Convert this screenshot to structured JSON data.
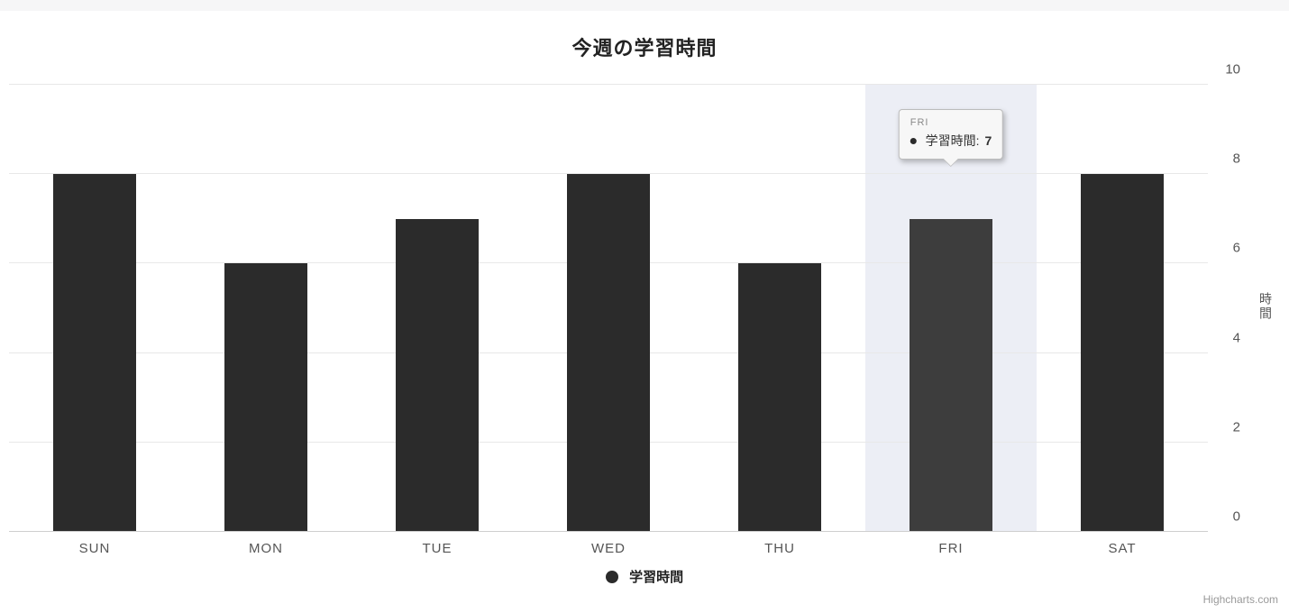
{
  "chart": {
    "type": "bar",
    "title": "今週の学習時間",
    "title_fontsize": 22,
    "background_color": "#ffffff",
    "top_strip_color": "#f6f6f7",
    "grid_color": "#e8e8e8",
    "baseline_color": "#cfcfcf",
    "categories": [
      "SUN",
      "MON",
      "TUE",
      "WED",
      "THU",
      "FRI",
      "SAT"
    ],
    "values": [
      8,
      6,
      7,
      8,
      6,
      7,
      8
    ],
    "bar_color": "#2b2b2b",
    "hover_bar_color": "#3d3d3d",
    "hover_background_color": "#eceef5",
    "bar_width": 0.48,
    "ylim": [
      0,
      10
    ],
    "ytick_step": 2,
    "y_axis_title": "時間",
    "y_axis_side": "right",
    "x_label_fontsize": 15,
    "y_label_fontsize": 15,
    "axis_label_color": "#555555",
    "hovered_index": 5,
    "series_name": "学習時間",
    "tooltip": {
      "category": "FRI",
      "series_label": "学習時間:",
      "value": "7",
      "value_fontweight": 700,
      "bg": "#f7f7f7",
      "border": "#bcbcbc",
      "cat_color": "#8a8a8a"
    },
    "legend": {
      "label": "学習時間",
      "swatch_color": "#2b2b2b",
      "fontweight": 700
    },
    "credits": "Highcharts.com",
    "credits_color": "#9a9a9a"
  }
}
